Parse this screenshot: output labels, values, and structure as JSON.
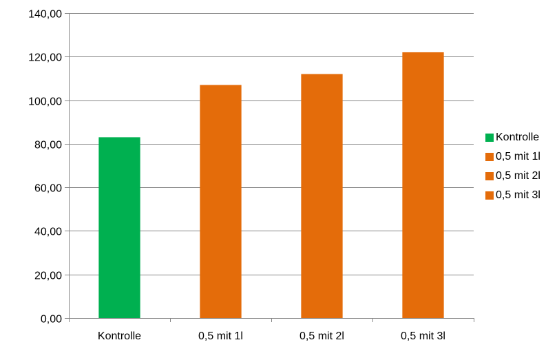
{
  "chart_data": {
    "type": "bar",
    "categories": [
      "Kontrolle",
      "0,5 mit 1l",
      "0,5 mit 2l",
      "0,5 mit 3l"
    ],
    "values": [
      83,
      107,
      112,
      122
    ],
    "colors": [
      "#00b050",
      "#e46c0a",
      "#e46c0a",
      "#e46c0a"
    ],
    "ylim": [
      0,
      140
    ],
    "yticks": [
      0,
      20,
      40,
      60,
      80,
      100,
      120,
      140
    ],
    "ytick_labels": [
      "0,00",
      "20,00",
      "40,00",
      "60,00",
      "80,00",
      "100,00",
      "120,00",
      "140,00"
    ],
    "grid": true,
    "legend_position": "right",
    "legend": [
      {
        "label": "Kontrolle",
        "color": "#00b050"
      },
      {
        "label": "0,5 mit 1l",
        "color": "#e46c0a"
      },
      {
        "label": "0,5 mit 2l",
        "color": "#e46c0a"
      },
      {
        "label": "0,5 mit 3l",
        "color": "#e46c0a"
      }
    ],
    "title": "",
    "xlabel": "",
    "ylabel": ""
  }
}
